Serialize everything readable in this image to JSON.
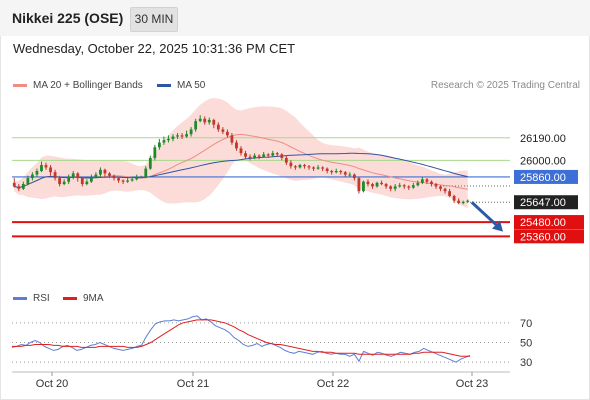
{
  "header": {
    "title": "Nikkei 225 (OSE)",
    "timeframe": "30 MIN",
    "timestamp": "Wednesday, October 22, 2025 10:31:36 PM CET"
  },
  "copyright": "Research © 2025 Trading Central",
  "colors": {
    "bullish": "#1f8a2a",
    "bearish": "#c0392b",
    "bollinger_band": "#fbd0cc",
    "ma20": "#f08c84",
    "ma50": "#2f56a0",
    "resistance": "#a8d88a",
    "pivot": "#3d6fd6",
    "support": "#e01010",
    "current_price": "#222222",
    "rsi": "#5b7fd6",
    "rsi_ma": "#e02020",
    "forecast_arrow": "#2c5aa8"
  },
  "chart_data": [
    {
      "type": "candlestick",
      "x_labels": [
        "Oct 20",
        "Oct 21",
        "Oct 22",
        "Oct 23"
      ],
      "y_range": [
        24950,
        26550
      ],
      "legend": [
        {
          "name": "MA 20 + Bollinger Bands",
          "color": "#f08c84"
        },
        {
          "name": "MA 50",
          "color": "#2f56a0"
        }
      ],
      "candles": [
        [
          25810,
          25780,
          25850,
          25770
        ],
        [
          25780,
          25760,
          25800,
          25740
        ],
        [
          25760,
          25800,
          25820,
          25750
        ],
        [
          25800,
          25850,
          25870,
          25790
        ],
        [
          25850,
          25880,
          25900,
          25830
        ],
        [
          25880,
          25910,
          25930,
          25860
        ],
        [
          25910,
          25960,
          25990,
          25900
        ],
        [
          25960,
          25940,
          25980,
          25920
        ],
        [
          25940,
          25900,
          25960,
          25870
        ],
        [
          25900,
          25850,
          25920,
          25830
        ],
        [
          25850,
          25800,
          25870,
          25780
        ],
        [
          25800,
          25820,
          25840,
          25790
        ],
        [
          25820,
          25860,
          25880,
          25800
        ],
        [
          25860,
          25890,
          25910,
          25840
        ],
        [
          25890,
          25850,
          25900,
          25820
        ],
        [
          25850,
          25800,
          25860,
          25780
        ],
        [
          25800,
          25820,
          25840,
          25790
        ],
        [
          25820,
          25860,
          25880,
          25810
        ],
        [
          25860,
          25880,
          25900,
          25850
        ],
        [
          25880,
          25920,
          25940,
          25860
        ],
        [
          25920,
          25890,
          25930,
          25860
        ],
        [
          25890,
          25870,
          25900,
          25850
        ],
        [
          25870,
          25850,
          25880,
          25830
        ],
        [
          25850,
          25830,
          25860,
          25810
        ],
        [
          25830,
          25820,
          25840,
          25800
        ],
        [
          25820,
          25830,
          25850,
          25810
        ],
        [
          25830,
          25840,
          25860,
          25820
        ],
        [
          25840,
          25860,
          25880,
          25830
        ],
        [
          25860,
          25860,
          25870,
          25850
        ],
        [
          25860,
          25930,
          25950,
          25850
        ],
        [
          25930,
          26020,
          26040,
          25920
        ],
        [
          26020,
          26110,
          26130,
          26000
        ],
        [
          26110,
          26150,
          26180,
          26090
        ],
        [
          26150,
          26170,
          26200,
          26130
        ],
        [
          26170,
          26180,
          26210,
          26150
        ],
        [
          26180,
          26200,
          26220,
          26160
        ],
        [
          26200,
          26210,
          26230,
          26180
        ],
        [
          26210,
          26200,
          26230,
          26180
        ],
        [
          26200,
          26220,
          26250,
          26190
        ],
        [
          26220,
          26260,
          26280,
          26200
        ],
        [
          26260,
          26330,
          26350,
          26240
        ],
        [
          26330,
          26350,
          26380,
          26320
        ],
        [
          26350,
          26320,
          26370,
          26300
        ],
        [
          26320,
          26340,
          26360,
          26300
        ],
        [
          26340,
          26300,
          26350,
          26270
        ],
        [
          26300,
          26260,
          26320,
          26240
        ],
        [
          26260,
          26240,
          26280,
          26220
        ],
        [
          26240,
          26210,
          26260,
          26190
        ],
        [
          26210,
          26150,
          26230,
          26130
        ],
        [
          26150,
          26100,
          26170,
          26080
        ],
        [
          26100,
          26060,
          26120,
          26040
        ],
        [
          26060,
          26030,
          26080,
          26010
        ],
        [
          26030,
          26020,
          26050,
          26000
        ],
        [
          26020,
          26040,
          26060,
          26010
        ],
        [
          26040,
          26030,
          26050,
          26010
        ],
        [
          26030,
          26050,
          26070,
          26020
        ],
        [
          26050,
          26040,
          26060,
          26020
        ],
        [
          26040,
          26060,
          26080,
          26030
        ],
        [
          26060,
          26050,
          26070,
          26030
        ],
        [
          26050,
          26020,
          26060,
          26000
        ],
        [
          26020,
          25980,
          26040,
          25960
        ],
        [
          25980,
          25950,
          26000,
          25930
        ],
        [
          25950,
          25940,
          25960,
          25920
        ],
        [
          25940,
          25960,
          25970,
          25930
        ],
        [
          25960,
          25950,
          25970,
          25930
        ],
        [
          25950,
          25940,
          25960,
          25920
        ],
        [
          25940,
          25930,
          25950,
          25910
        ],
        [
          25930,
          25940,
          25960,
          25920
        ],
        [
          25940,
          25930,
          25950,
          25910
        ],
        [
          25930,
          25910,
          25940,
          25890
        ],
        [
          25910,
          25900,
          25920,
          25880
        ],
        [
          25900,
          25910,
          25930,
          25890
        ],
        [
          25910,
          25900,
          25920,
          25880
        ],
        [
          25900,
          25880,
          25910,
          25860
        ],
        [
          25880,
          25880,
          25900,
          25860
        ],
        [
          25880,
          25850,
          25890,
          25830
        ],
        [
          25850,
          25740,
          25860,
          25720
        ],
        [
          25740,
          25820,
          25830,
          25730
        ],
        [
          25820,
          25800,
          25840,
          25780
        ],
        [
          25800,
          25780,
          25810,
          25760
        ],
        [
          25780,
          25810,
          25820,
          25770
        ],
        [
          25810,
          25800,
          25830,
          25790
        ],
        [
          25800,
          25780,
          25810,
          25760
        ],
        [
          25780,
          25760,
          25790,
          25740
        ],
        [
          25760,
          25780,
          25800,
          25740
        ],
        [
          25780,
          25790,
          25810,
          25770
        ],
        [
          25790,
          25780,
          25800,
          25760
        ],
        [
          25780,
          25770,
          25790,
          25750
        ],
        [
          25770,
          25790,
          25810,
          25760
        ],
        [
          25790,
          25810,
          25830,
          25780
        ],
        [
          25810,
          25840,
          25860,
          25800
        ],
        [
          25840,
          25820,
          25850,
          25800
        ],
        [
          25820,
          25800,
          25830,
          25780
        ],
        [
          25800,
          25780,
          25810,
          25760
        ],
        [
          25780,
          25760,
          25790,
          25740
        ],
        [
          25760,
          25740,
          25770,
          25720
        ],
        [
          25740,
          25700,
          25760,
          25690
        ],
        [
          25700,
          25660,
          25710,
          25640
        ],
        [
          25660,
          25640,
          25680,
          25630
        ],
        [
          25640,
          25650,
          25660,
          25630
        ],
        [
          25650,
          25660,
          25670,
          25640
        ]
      ],
      "levels": [
        {
          "label": "26190.00",
          "value": 26190,
          "style": "resistance"
        },
        {
          "label": "26000.00",
          "value": 26000,
          "style": "resistance"
        },
        {
          "label": "25860.00",
          "value": 25860,
          "style": "pivot"
        },
        {
          "label": "25647.00",
          "value": 25647,
          "style": "current_price"
        },
        {
          "label": "25480.00",
          "value": 25480,
          "style": "support"
        },
        {
          "label": "25360.00",
          "value": 25360,
          "style": "support"
        }
      ]
    },
    {
      "type": "line",
      "legend": [
        {
          "name": "RSI",
          "color": "#5b7fd6"
        },
        {
          "name": "9MA",
          "color": "#e02020"
        }
      ],
      "y_range": [
        20,
        80
      ],
      "ticks": [
        70,
        50,
        30
      ],
      "rsi": [
        45,
        46,
        48,
        47,
        50,
        52,
        50,
        46,
        44,
        42,
        43,
        46,
        47,
        45,
        42,
        43,
        45,
        47,
        48,
        50,
        48,
        46,
        44,
        43,
        42,
        43,
        44,
        46,
        47,
        56,
        63,
        69,
        71,
        72,
        72,
        73,
        72,
        73,
        74,
        76,
        77,
        73,
        74,
        71,
        67,
        65,
        63,
        60,
        55,
        52,
        48,
        46,
        47,
        49,
        46,
        48,
        49,
        47,
        45,
        42,
        40,
        39,
        41,
        40,
        39,
        38,
        40,
        41,
        39,
        38,
        39,
        38,
        38,
        36,
        38,
        31,
        41,
        39,
        37,
        40,
        39,
        37,
        36,
        38,
        40,
        39,
        38,
        40,
        41,
        44,
        42,
        40,
        38,
        36,
        34,
        32,
        30,
        33,
        35,
        37
      ],
      "rsi_ma": [
        46,
        46,
        46,
        47,
        47,
        48,
        48,
        48,
        48,
        47,
        47,
        46,
        46,
        46,
        46,
        45,
        45,
        45,
        45,
        46,
        46,
        46,
        46,
        46,
        46,
        45,
        45,
        45,
        46,
        48,
        50,
        53,
        56,
        59,
        62,
        65,
        68,
        70,
        71,
        72,
        73,
        73,
        73,
        73,
        72,
        71,
        70,
        68,
        66,
        63,
        61,
        58,
        56,
        54,
        52,
        50,
        49,
        48,
        48,
        47,
        46,
        45,
        44,
        43,
        42,
        41,
        41,
        40,
        40,
        40,
        39,
        39,
        39,
        39,
        39,
        38,
        38,
        38,
        38,
        38,
        38,
        38,
        38,
        38,
        38,
        38,
        38,
        39,
        39,
        40,
        40,
        40,
        40,
        40,
        39,
        38,
        37,
        36,
        36,
        36
      ]
    }
  ]
}
